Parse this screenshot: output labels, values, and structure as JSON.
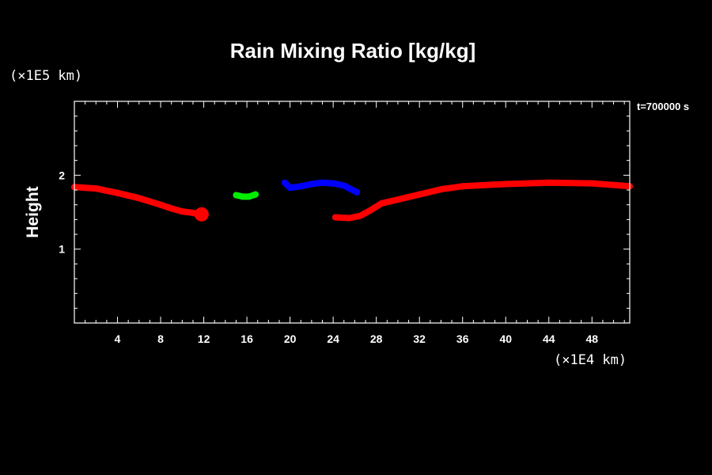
{
  "chart_data": {
    "type": "line",
    "title": "Rain Mixing Ratio [kg/kg]",
    "ylabel": "Height",
    "y_unit": "(×1E5 km)",
    "x_unit": "(×1E4 km)",
    "time_label": "t=700000 s",
    "xlim": [
      0,
      51.5
    ],
    "ylim": [
      0,
      3
    ],
    "x_ticks": [
      4,
      8,
      12,
      16,
      20,
      24,
      28,
      32,
      36,
      40,
      44,
      48
    ],
    "y_ticks": [
      1,
      2
    ],
    "grid": false,
    "series": [
      {
        "color": "#ff0000",
        "points": [
          [
            0,
            1.84
          ],
          [
            2,
            1.82
          ],
          [
            4,
            1.76
          ],
          [
            6,
            1.69
          ],
          [
            8,
            1.6
          ],
          [
            9,
            1.55
          ],
          [
            10,
            1.51
          ],
          [
            11,
            1.49
          ],
          [
            11.8,
            1.46
          ]
        ]
      },
      {
        "color": "#00ee00",
        "points": [
          [
            15,
            1.73
          ],
          [
            15.6,
            1.71
          ],
          [
            16.2,
            1.71
          ],
          [
            16.8,
            1.74
          ]
        ]
      },
      {
        "color": "#0000ff",
        "points": [
          [
            19.5,
            1.9
          ],
          [
            20,
            1.83
          ],
          [
            21,
            1.85
          ],
          [
            22,
            1.88
          ],
          [
            23,
            1.9
          ],
          [
            24,
            1.89
          ],
          [
            25,
            1.86
          ],
          [
            26.2,
            1.77
          ]
        ]
      },
      {
        "color": "#ff0000",
        "points": [
          [
            24.2,
            1.43
          ],
          [
            25.5,
            1.42
          ],
          [
            26.5,
            1.45
          ],
          [
            27.5,
            1.53
          ],
          [
            28.5,
            1.62
          ],
          [
            30,
            1.67
          ],
          [
            32,
            1.74
          ],
          [
            34,
            1.81
          ],
          [
            36,
            1.85
          ],
          [
            40,
            1.88
          ],
          [
            44,
            1.9
          ],
          [
            48,
            1.89
          ],
          [
            51.5,
            1.85
          ]
        ]
      }
    ]
  }
}
